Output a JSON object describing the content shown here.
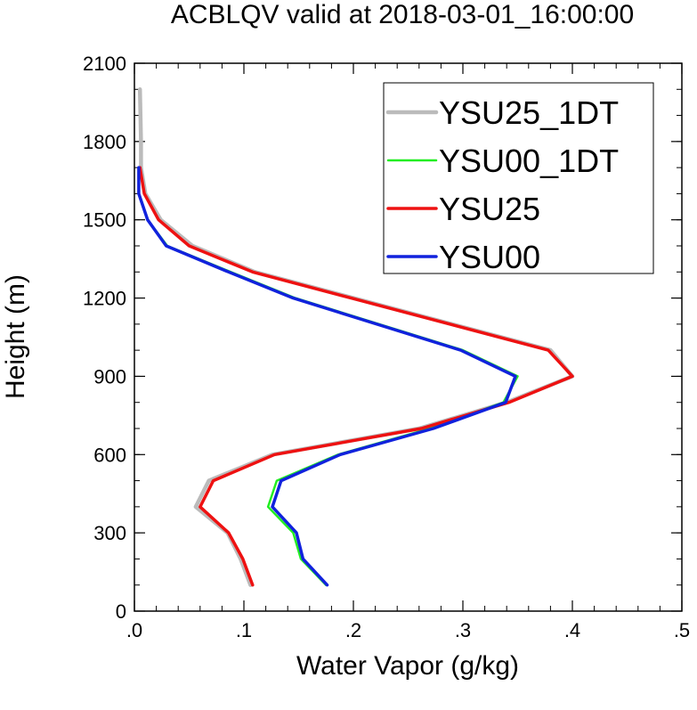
{
  "chart_data": {
    "type": "line",
    "title": "ACBLQV valid at 2018-03-01_16:00:00",
    "xlabel": "Water Vapor (g/kg)",
    "ylabel": "Height (m)",
    "xlim": [
      0,
      0.5
    ],
    "ylim": [
      0,
      2100
    ],
    "xticks": [
      0,
      0.1,
      0.2,
      0.3,
      0.4,
      0.5
    ],
    "xtick_labels": [
      ".0",
      ".1",
      ".2",
      ".3",
      ".4",
      ".5"
    ],
    "yticks": [
      0,
      300,
      600,
      900,
      1200,
      1500,
      1800,
      2100
    ],
    "ytick_labels": [
      "0",
      "300",
      "600",
      "900",
      "1200",
      "1500",
      "1800",
      "2100"
    ],
    "grid": false,
    "legend_position": "top-right",
    "series": [
      {
        "name": "YSU25_1DT",
        "color": "#bbbbbb",
        "points": [
          [
            0.106,
            100
          ],
          [
            0.097,
            200
          ],
          [
            0.085,
            300
          ],
          [
            0.056,
            400
          ],
          [
            0.068,
            500
          ],
          [
            0.126,
            600
          ],
          [
            0.26,
            700
          ],
          [
            0.34,
            800
          ],
          [
            0.4,
            900
          ],
          [
            0.38,
            1000
          ],
          [
            0.2,
            1200
          ],
          [
            0.11,
            1300
          ],
          [
            0.053,
            1400
          ],
          [
            0.024,
            1500
          ],
          [
            0.01,
            1600
          ],
          [
            0.006,
            1700
          ],
          [
            0.006,
            1800
          ],
          [
            0.005,
            2000
          ]
        ]
      },
      {
        "name": "YSU00_1DT",
        "color": "#22ee22",
        "points": [
          [
            0.175,
            100
          ],
          [
            0.152,
            200
          ],
          [
            0.145,
            300
          ],
          [
            0.122,
            400
          ],
          [
            0.13,
            500
          ],
          [
            0.186,
            600
          ],
          [
            0.27,
            700
          ],
          [
            0.337,
            800
          ],
          [
            0.35,
            900
          ],
          [
            0.3,
            1000
          ],
          [
            0.147,
            1200
          ],
          [
            0.088,
            1300
          ],
          [
            0.03,
            1400
          ],
          [
            0.012,
            1500
          ],
          [
            0.004,
            1600
          ],
          [
            0.004,
            1700
          ]
        ]
      },
      {
        "name": "YSU25",
        "color": "#ee1111",
        "points": [
          [
            0.108,
            100
          ],
          [
            0.099,
            200
          ],
          [
            0.086,
            300
          ],
          [
            0.06,
            400
          ],
          [
            0.072,
            500
          ],
          [
            0.128,
            600
          ],
          [
            0.262,
            700
          ],
          [
            0.342,
            800
          ],
          [
            0.4,
            900
          ],
          [
            0.378,
            1000
          ],
          [
            0.198,
            1200
          ],
          [
            0.108,
            1300
          ],
          [
            0.05,
            1400
          ],
          [
            0.022,
            1500
          ],
          [
            0.009,
            1600
          ],
          [
            0.005,
            1700
          ]
        ]
      },
      {
        "name": "YSU00",
        "color": "#1122dd",
        "points": [
          [
            0.176,
            100
          ],
          [
            0.154,
            200
          ],
          [
            0.148,
            300
          ],
          [
            0.126,
            400
          ],
          [
            0.134,
            500
          ],
          [
            0.188,
            600
          ],
          [
            0.273,
            700
          ],
          [
            0.339,
            800
          ],
          [
            0.348,
            900
          ],
          [
            0.298,
            1000
          ],
          [
            0.145,
            1200
          ],
          [
            0.086,
            1300
          ],
          [
            0.029,
            1400
          ],
          [
            0.012,
            1500
          ],
          [
            0.004,
            1600
          ],
          [
            0.004,
            1700
          ]
        ]
      }
    ]
  }
}
